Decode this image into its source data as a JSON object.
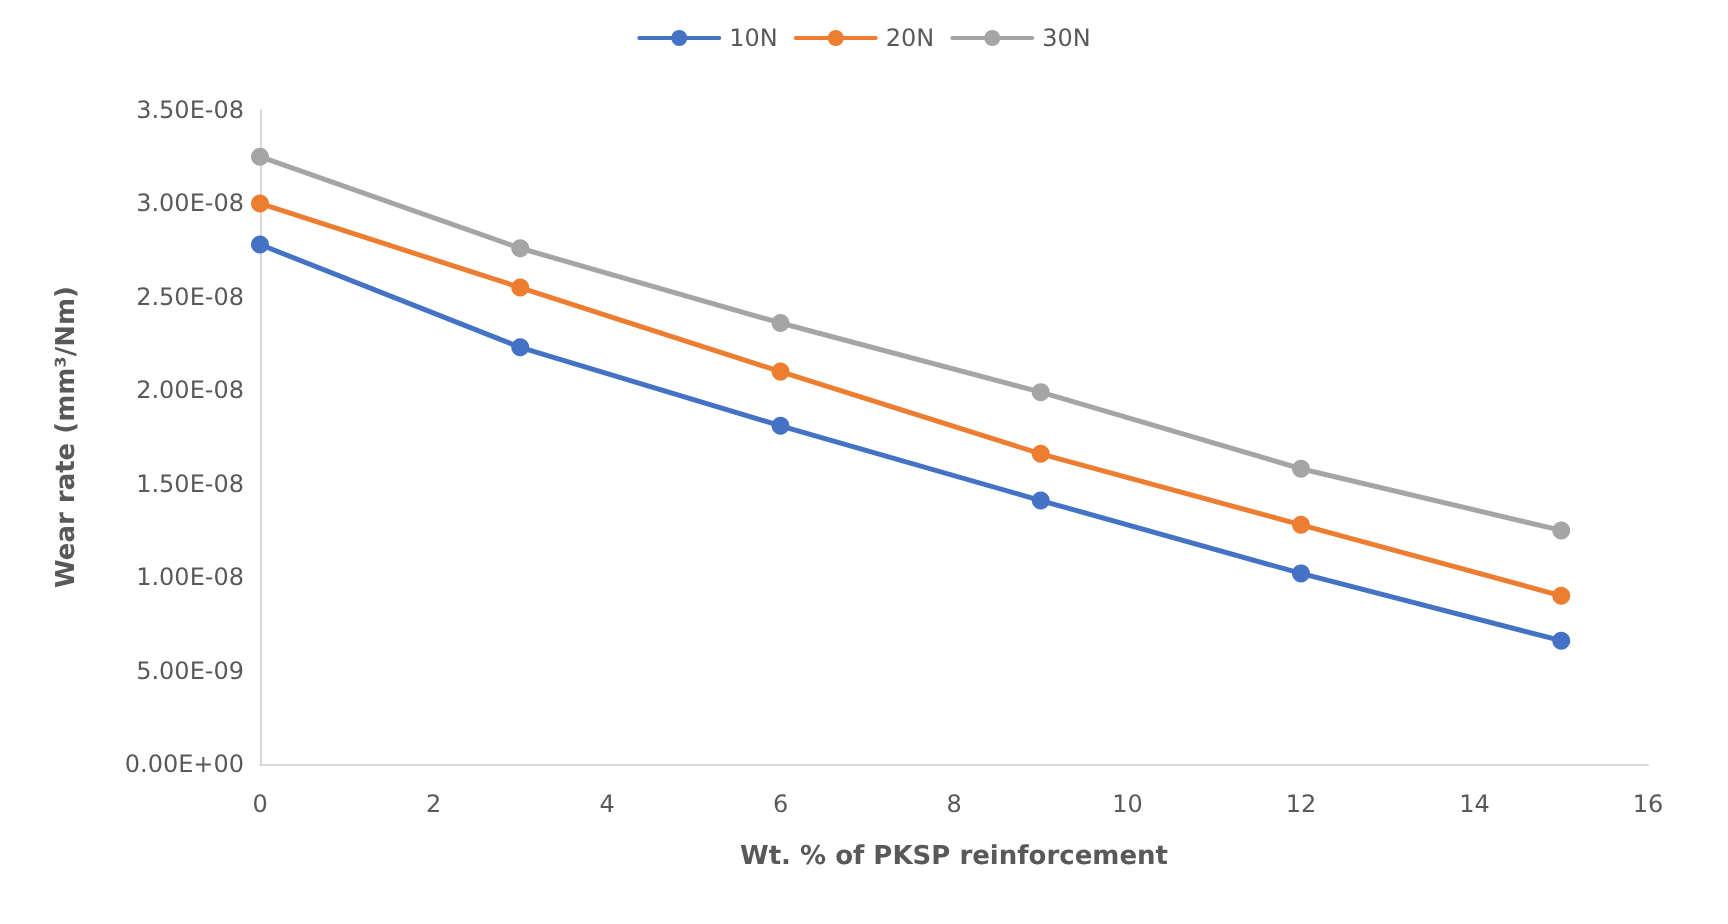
{
  "chart_data": {
    "type": "line",
    "xlabel": "Wt. % of PKSP reinforcement",
    "ylabel": "Wear rate (mm³/Nm)",
    "x": [
      0,
      3,
      6,
      9,
      12,
      15
    ],
    "series": [
      {
        "name": "10N",
        "color": "#4472c4",
        "values": [
          2.78e-08,
          2.23e-08,
          1.81e-08,
          1.41e-08,
          1.02e-08,
          6.6e-09
        ]
      },
      {
        "name": "20N",
        "color": "#ed7d31",
        "values": [
          3e-08,
          2.55e-08,
          2.1e-08,
          1.66e-08,
          1.28e-08,
          9e-09
        ]
      },
      {
        "name": "30N",
        "color": "#a5a5a5",
        "values": [
          3.25e-08,
          2.76e-08,
          2.36e-08,
          1.99e-08,
          1.58e-08,
          1.25e-08
        ]
      }
    ],
    "xlim": [
      0,
      16
    ],
    "xticks": [
      0,
      2,
      4,
      6,
      8,
      10,
      12,
      14,
      16
    ],
    "ylim": [
      0,
      3.5e-08
    ],
    "yticks": [
      {
        "value": 0,
        "label": "0.00E+00"
      },
      {
        "value": 5e-09,
        "label": "5.00E-09"
      },
      {
        "value": 1e-08,
        "label": "1.00E-08"
      },
      {
        "value": 1.5e-08,
        "label": "1.50E-08"
      },
      {
        "value": 2e-08,
        "label": "2.00E-08"
      },
      {
        "value": 2.5e-08,
        "label": "2.50E-08"
      },
      {
        "value": 3e-08,
        "label": "3.00E-08"
      },
      {
        "value": 3.5e-08,
        "label": "3.50E-08"
      }
    ],
    "grid": false,
    "legend": "top",
    "marker": "circle",
    "line_style": "solid"
  }
}
